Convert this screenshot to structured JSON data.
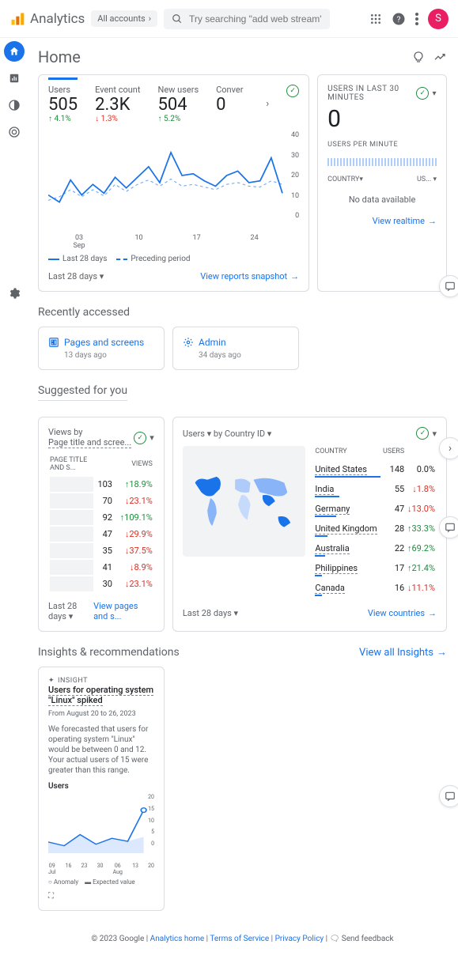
{
  "topbar": {
    "brand": "Analytics",
    "account": "All accounts",
    "search_placeholder": "Try searching \"add web stream\"",
    "avatar_letter": "S"
  },
  "page": {
    "title": "Home"
  },
  "main_chart": {
    "metrics": [
      {
        "label": "Users",
        "value": "505",
        "delta": "4.1%",
        "dir": "up",
        "active": true
      },
      {
        "label": "Event count",
        "value": "2.3K",
        "delta": "1.3%",
        "dir": "down"
      },
      {
        "label": "New users",
        "value": "504",
        "delta": "5.2%",
        "dir": "up"
      },
      {
        "label": "Conver",
        "value": "0",
        "delta": "",
        "dir": ""
      }
    ],
    "y_ticks": [
      "40",
      "30",
      "20",
      "10",
      "0"
    ],
    "x_ticks": [
      "03\nSep",
      "10",
      "17",
      "24"
    ],
    "legend": {
      "current": "Last 28 days",
      "prev": "Preceding period"
    },
    "foot_dd": "Last 28 days",
    "foot_link": "View reports snapshot",
    "line_points": "0,72 12,80 24,55 36,72 48,60 60,70 72,52 84,64 96,52 108,40 120,58 132,24 144,50 156,48 168,56 180,62 192,50 204,45 216,58 228,56 240,30 252,70",
    "dash_points": "0,78 12,74 24,66 36,74 48,66 60,73 72,60 84,68 96,60 108,55 120,62 132,54 144,62 156,60 168,63 180,66 192,60 204,58 216,62 228,63 240,56 252,60"
  },
  "realtime": {
    "title": "USERS IN LAST 30 MINUTES",
    "value": "0",
    "sub": "USERS PER MINUTE",
    "col1": "COUNTRY",
    "col2": "US...",
    "nodata": "No data available",
    "link": "View realtime"
  },
  "recent": {
    "title": "Recently accessed",
    "items": [
      {
        "title": "Pages and screens",
        "sub": "13 days ago"
      },
      {
        "title": "Admin",
        "sub": "34 days ago"
      }
    ]
  },
  "suggested": {
    "title": "Suggested for you"
  },
  "views": {
    "label": "Views by",
    "dim": "Page title and scree...",
    "col1": "PAGE TITLE AND S...",
    "col2": "VIEWS",
    "rows": [
      {
        "v": "103",
        "d": "18.9%",
        "dir": "up"
      },
      {
        "v": "70",
        "d": "23.1%",
        "dir": "down"
      },
      {
        "v": "92",
        "d": "109.1%",
        "dir": "up"
      },
      {
        "v": "47",
        "d": "29.9%",
        "dir": "down"
      },
      {
        "v": "35",
        "d": "37.5%",
        "dir": "down"
      },
      {
        "v": "41",
        "d": "8.9%",
        "dir": "down"
      },
      {
        "v": "30",
        "d": "23.1%",
        "dir": "down"
      }
    ],
    "foot_dd": "Last 28 days",
    "foot_link": "View pages and s..."
  },
  "countries": {
    "dd1": "Users",
    "dd2": "by Country ID",
    "col1": "COUNTRY",
    "col2": "USERS",
    "rows": [
      {
        "name": "United States",
        "v": "148",
        "d": "0.0%",
        "dir": "",
        "bar": 100
      },
      {
        "name": "India",
        "v": "55",
        "d": "1.8%",
        "dir": "down",
        "bar": 37
      },
      {
        "name": "Germany",
        "v": "47",
        "d": "13.0%",
        "dir": "down",
        "bar": 32
      },
      {
        "name": "United Kingdom",
        "v": "28",
        "d": "33.3%",
        "dir": "up",
        "bar": 19
      },
      {
        "name": "Australia",
        "v": "22",
        "d": "69.2%",
        "dir": "up",
        "bar": 15
      },
      {
        "name": "Philippines",
        "v": "17",
        "d": "21.4%",
        "dir": "up",
        "bar": 11
      },
      {
        "name": "Canada",
        "v": "16",
        "d": "11.1%",
        "dir": "down",
        "bar": 11
      }
    ],
    "foot_dd": "Last 28 days",
    "foot_link": "View countries"
  },
  "insights": {
    "title": "Insights & recommendations",
    "view_all": "View all Insights",
    "badge": "INSIGHT",
    "item_title": "Users for operating system \"Linux\" spiked",
    "date": "From August 20 to 26, 2023",
    "body": "We forecasted that users for operating system \"Linux\" would be between 0 and 12. Your actual users of 15 were greater than this range.",
    "sub": "Users",
    "y_ticks": [
      "20",
      "15",
      "10",
      "5",
      "0"
    ],
    "x_ticks": [
      "09\nJul",
      "16",
      "23",
      "30",
      "06\nAug",
      "13",
      "20"
    ],
    "line_points": "0,65 18,70 36,55 54,68 72,60 90,64 108,22",
    "leg_anomaly": "Anomaly",
    "leg_expected": "Expected value"
  },
  "footer": {
    "copy": "© 2023 Google",
    "l1": "Analytics home",
    "l2": "Terms of Service",
    "l3": "Privacy Policy",
    "fb": "Send feedback"
  }
}
